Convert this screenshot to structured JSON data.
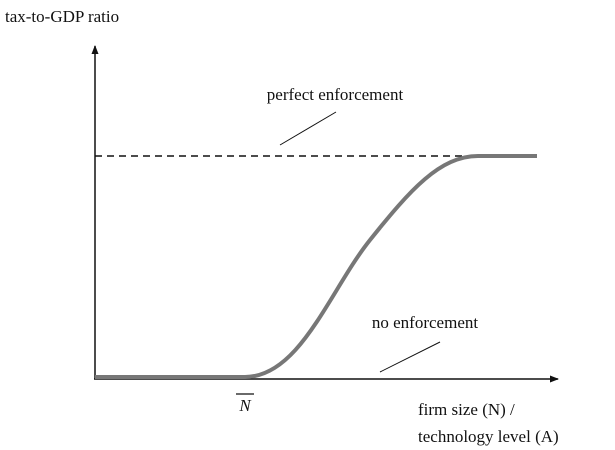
{
  "axis_labels": {
    "y": "tax-to-GDP ratio",
    "x_line1": "firm size (N) /",
    "x_line2": "technology level (A)"
  },
  "annotations": {
    "upper": "perfect enforcement",
    "lower": "no enforcement"
  },
  "threshold_label": "N"
}
